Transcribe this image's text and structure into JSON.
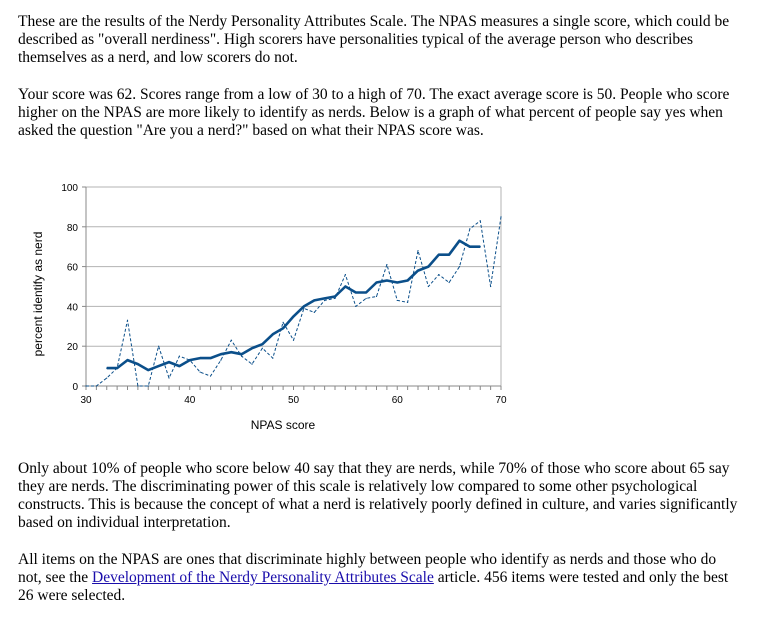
{
  "intro": {
    "paragraph_1": "These are the results of the Nerdy Personality Attributes Scale. The NPAS measures a single score, which could be described as \"overall nerdiness\". High scorers have personalities typical of the average person who describes themselves as a nerd, and low scorers do not.",
    "paragraph_2": "Your score was 62. Scores range from a low of 30 to a high of 70. The exact average score is 50. People who score higher on the NPAS are more likely to identify as nerds. Below is a graph of what percent of people say yes when asked the question \"Are you a nerd?\" based on what their NPAS score was."
  },
  "chart_data": {
    "type": "line",
    "xlabel": "NPAS score",
    "ylabel": "percent identify as nerd",
    "xlim": [
      30,
      70
    ],
    "ylim": [
      0,
      100
    ],
    "x_ticks": [
      30,
      40,
      50,
      60,
      70
    ],
    "y_ticks": [
      0,
      20,
      40,
      60,
      80,
      100
    ],
    "grid": "horizontal",
    "colors": {
      "line": "#0b4f8a",
      "grid": "#b3b3b3",
      "axis": "#888888"
    },
    "series": [
      {
        "style": "dashed",
        "x": [
          30,
          31,
          32,
          33,
          34,
          35,
          36,
          37,
          38,
          39,
          40,
          41,
          42,
          43,
          44,
          45,
          46,
          47,
          48,
          49,
          50,
          51,
          52,
          53,
          54,
          55,
          56,
          57,
          58,
          59,
          60,
          61,
          62,
          63,
          64,
          65,
          66,
          67,
          68,
          69,
          70
        ],
        "values": [
          0,
          0,
          4,
          9,
          33,
          0,
          0,
          20,
          4,
          15,
          13,
          7,
          5,
          13,
          23,
          15,
          11,
          19,
          14,
          32,
          23,
          39,
          37,
          43,
          44,
          56,
          40,
          44,
          45,
          61,
          43,
          42,
          68,
          50,
          56,
          52,
          60,
          79,
          83,
          50,
          85
        ]
      },
      {
        "style": "solid",
        "x": [
          32,
          33,
          34,
          35,
          36,
          37,
          38,
          39,
          40,
          41,
          42,
          43,
          44,
          45,
          46,
          47,
          48,
          49,
          50,
          51,
          52,
          53,
          54,
          55,
          56,
          57,
          58,
          59,
          60,
          61,
          62,
          63,
          64,
          65,
          66,
          67,
          68
        ],
        "values": [
          9,
          9,
          13,
          11,
          8,
          10,
          12,
          10,
          13,
          14,
          14,
          16,
          17,
          16,
          19,
          21,
          26,
          29,
          35,
          40,
          43,
          44,
          45,
          50,
          47,
          47,
          52,
          53,
          52,
          53,
          58,
          60,
          66,
          66,
          73,
          70,
          70
        ]
      }
    ]
  },
  "after_chart": {
    "paragraph_3": "Only about 10% of people who score below 40 say that they are nerds, while 70% of those who score about 65 say they are nerds. The discriminating power of this scale is relatively low compared to some other psychological constructs. This is because the concept of what a nerd is relatively poorly defined in culture, and varies significantly based on individual interpretation.",
    "paragraph_4_before_link": "All items on the NPAS are ones that discriminate highly between people who identify as nerds and those who do not, see the ",
    "link_text": "Development of the Nerdy Personality Attributes Scale",
    "paragraph_4_after_link": " article. 456 items were tested and only the best 26 were selected."
  }
}
